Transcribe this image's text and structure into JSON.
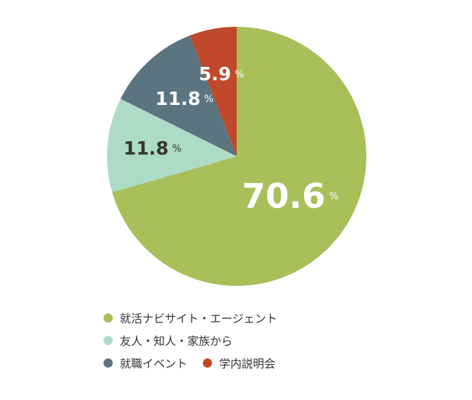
{
  "colors": {
    "green": "#a9bf5a",
    "mint": "#acdcc7",
    "slate": "#5a7580",
    "red": "#c0492b",
    "white_text": "#ffffff",
    "dark_text": "#333333"
  },
  "chart_data": {
    "type": "pie",
    "title": "",
    "unit": "%",
    "categories": [
      "就活ナビサイト・エージェント",
      "友人・知人・家族から",
      "就職イベント",
      "学内説明会"
    ],
    "values": [
      70.6,
      11.8,
      11.8,
      5.9
    ],
    "value_labels": [
      "70.6",
      "11.8",
      "11.8",
      "5.9"
    ],
    "start_angle_deg": 0,
    "direction": "clockwise",
    "legend_position": "bottom-left"
  },
  "legend": {
    "rows": [
      [
        0
      ],
      [
        1
      ],
      [
        2,
        3
      ]
    ]
  }
}
